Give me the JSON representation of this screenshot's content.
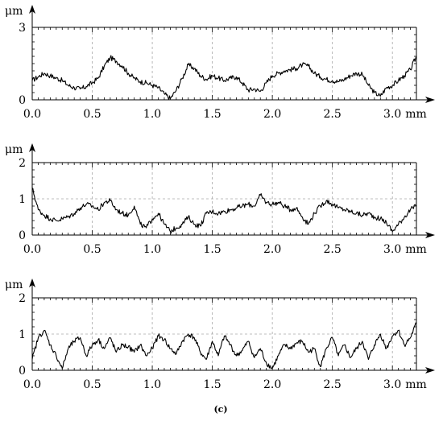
{
  "figure": {
    "caption": "(c)"
  },
  "chart_data": [
    {
      "type": "line",
      "panel": "top",
      "ylabel_unit": "μm",
      "xlabel_unit": "mm",
      "xlim": [
        0,
        3.2
      ],
      "ylim": [
        0,
        3
      ],
      "xticks": [
        "0.0",
        "0.5",
        "1.0",
        "1.5",
        "2.0",
        "2.5",
        "3.0"
      ],
      "yticks": [
        "0",
        "3"
      ],
      "grid": true,
      "series": [
        {
          "x": [
            0.0,
            0.05,
            0.1,
            0.15,
            0.2,
            0.25,
            0.3,
            0.35,
            0.4,
            0.45,
            0.5,
            0.55,
            0.6,
            0.65,
            0.7,
            0.75,
            0.8,
            0.85,
            0.9,
            0.95,
            1.0,
            1.05,
            1.1,
            1.15,
            1.2,
            1.25,
            1.3,
            1.35,
            1.4,
            1.45,
            1.5,
            1.55,
            1.6,
            1.65,
            1.7,
            1.75,
            1.8,
            1.85,
            1.9,
            1.95,
            2.0,
            2.05,
            2.1,
            2.15,
            2.2,
            2.25,
            2.3,
            2.35,
            2.4,
            2.45,
            2.5,
            2.55,
            2.6,
            2.65,
            2.7,
            2.75,
            2.8,
            2.85,
            2.9,
            2.95,
            3.0,
            3.05,
            3.1,
            3.15,
            3.2
          ],
          "y": [
            0.8,
            0.95,
            1.1,
            1.0,
            0.9,
            0.8,
            0.6,
            0.5,
            0.45,
            0.55,
            0.7,
            0.9,
            1.4,
            1.75,
            1.6,
            1.4,
            1.1,
            0.9,
            0.75,
            0.7,
            0.6,
            0.5,
            0.25,
            0.05,
            0.4,
            0.9,
            1.45,
            1.3,
            1.0,
            0.85,
            1.0,
            0.9,
            0.8,
            0.9,
            0.95,
            0.7,
            0.4,
            0.45,
            0.35,
            0.7,
            1.0,
            1.1,
            1.2,
            1.25,
            1.3,
            1.45,
            1.4,
            1.1,
            0.95,
            0.85,
            0.8,
            0.75,
            0.85,
            1.0,
            1.1,
            1.05,
            0.6,
            0.3,
            0.15,
            0.5,
            0.6,
            0.8,
            1.0,
            1.25,
            1.8
          ]
        }
      ]
    },
    {
      "type": "line",
      "panel": "middle",
      "ylabel_unit": "μm",
      "xlabel_unit": "mm",
      "xlim": [
        0,
        3.2
      ],
      "ylim": [
        0,
        2
      ],
      "xticks": [
        "0.0",
        "0.5",
        "1.0",
        "1.5",
        "2.0",
        "2.5",
        "3.0"
      ],
      "yticks": [
        "0",
        "1",
        "2"
      ],
      "grid": true,
      "series": [
        {
          "x": [
            0.0,
            0.05,
            0.1,
            0.15,
            0.2,
            0.25,
            0.3,
            0.35,
            0.4,
            0.45,
            0.5,
            0.55,
            0.6,
            0.65,
            0.7,
            0.75,
            0.8,
            0.85,
            0.9,
            0.95,
            1.0,
            1.05,
            1.1,
            1.15,
            1.2,
            1.25,
            1.3,
            1.35,
            1.4,
            1.45,
            1.5,
            1.55,
            1.6,
            1.65,
            1.7,
            1.75,
            1.8,
            1.85,
            1.9,
            1.95,
            2.0,
            2.05,
            2.1,
            2.15,
            2.2,
            2.25,
            2.3,
            2.35,
            2.4,
            2.45,
            2.5,
            2.55,
            2.6,
            2.65,
            2.7,
            2.75,
            2.8,
            2.85,
            2.9,
            2.95,
            3.0,
            3.05,
            3.1,
            3.15,
            3.2
          ],
          "y": [
            1.3,
            0.7,
            0.55,
            0.45,
            0.4,
            0.45,
            0.5,
            0.6,
            0.75,
            0.85,
            0.8,
            0.7,
            0.9,
            0.95,
            0.7,
            0.6,
            0.55,
            0.8,
            0.3,
            0.2,
            0.45,
            0.6,
            0.3,
            0.1,
            0.2,
            0.3,
            0.5,
            0.3,
            0.25,
            0.6,
            0.65,
            0.6,
            0.65,
            0.7,
            0.75,
            0.8,
            0.85,
            0.8,
            1.1,
            0.9,
            0.85,
            0.9,
            0.8,
            0.7,
            0.75,
            0.5,
            0.3,
            0.6,
            0.8,
            0.95,
            0.85,
            0.75,
            0.7,
            0.65,
            0.6,
            0.55,
            0.6,
            0.5,
            0.45,
            0.35,
            0.1,
            0.3,
            0.5,
            0.7,
            0.8
          ]
        }
      ]
    },
    {
      "type": "line",
      "panel": "bottom",
      "ylabel_unit": "μm",
      "xlabel_unit": "mm",
      "xlim": [
        0,
        3.2
      ],
      "ylim": [
        0,
        2
      ],
      "xticks": [
        "0.0",
        "0.5",
        "1.0",
        "1.5",
        "2.0",
        "2.5",
        "3.0"
      ],
      "yticks": [
        "0",
        "1",
        "2"
      ],
      "grid": true,
      "series": [
        {
          "x": [
            0.0,
            0.05,
            0.1,
            0.15,
            0.2,
            0.25,
            0.3,
            0.35,
            0.4,
            0.45,
            0.5,
            0.55,
            0.6,
            0.65,
            0.7,
            0.75,
            0.8,
            0.85,
            0.9,
            0.95,
            1.0,
            1.05,
            1.1,
            1.15,
            1.2,
            1.25,
            1.3,
            1.35,
            1.4,
            1.45,
            1.5,
            1.55,
            1.6,
            1.65,
            1.7,
            1.75,
            1.8,
            1.85,
            1.9,
            1.95,
            2.0,
            2.05,
            2.1,
            2.15,
            2.2,
            2.25,
            2.3,
            2.35,
            2.4,
            2.45,
            2.5,
            2.55,
            2.6,
            2.65,
            2.7,
            2.75,
            2.8,
            2.85,
            2.9,
            2.95,
            3.0,
            3.05,
            3.1,
            3.15,
            3.2
          ],
          "y": [
            0.3,
            0.9,
            1.1,
            0.7,
            0.4,
            0.05,
            0.6,
            0.8,
            0.9,
            0.4,
            0.7,
            0.85,
            0.6,
            0.9,
            0.5,
            0.7,
            0.65,
            0.5,
            0.7,
            0.4,
            0.6,
            0.95,
            0.85,
            0.6,
            0.45,
            0.8,
            1.0,
            0.9,
            0.5,
            0.3,
            0.8,
            0.4,
            0.95,
            0.7,
            0.4,
            0.55,
            0.8,
            0.35,
            0.6,
            0.2,
            0.05,
            0.4,
            0.7,
            0.6,
            0.75,
            0.8,
            0.5,
            0.6,
            0.1,
            0.6,
            0.9,
            0.4,
            0.7,
            0.35,
            0.6,
            0.8,
            0.3,
            0.7,
            1.0,
            0.6,
            0.95,
            1.1,
            0.7,
            0.9,
            1.3
          ]
        }
      ]
    }
  ]
}
